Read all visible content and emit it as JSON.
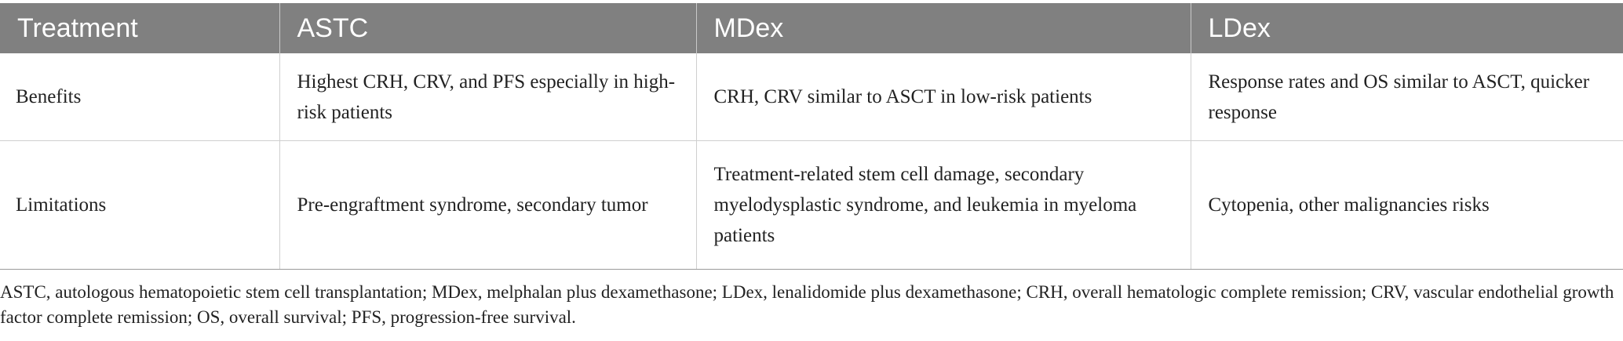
{
  "table": {
    "headers": [
      "Treatment",
      "ASTC",
      "MDex",
      "LDex"
    ],
    "rows": [
      {
        "label": "Benefits",
        "cells": [
          "Highest CRH, CRV, and PFS especially in high-risk patients",
          "CRH, CRV similar to ASCT in low-risk patients",
          "Response rates and OS similar to ASCT, quicker response"
        ]
      },
      {
        "label": "Limitations",
        "cells": [
          "Pre-engraftment syndrome, secondary tumor",
          "Treatment-related stem cell damage, secondary myelodysplastic syndrome, and leukemia in myeloma patients",
          "Cytopenia, other malignancies risks"
        ]
      }
    ]
  },
  "footnote": "ASTC, autologous hematopoietic stem cell transplantation; MDex, melphalan plus dexamethasone; LDex, lenalidomide plus dexamethasone; CRH, overall hematologic complete remission; CRV, vascular endothelial growth factor complete remission; OS, overall survival; PFS, progression-free survival."
}
